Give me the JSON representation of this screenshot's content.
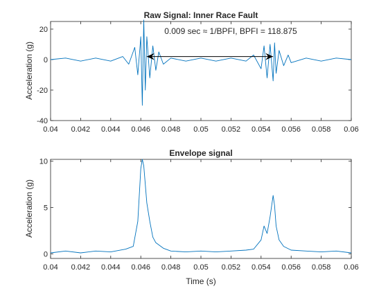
{
  "chart_data": [
    {
      "type": "line",
      "title": "Raw Signal: Inner Race Fault",
      "xlabel": "",
      "ylabel": "Acceleration (g)",
      "xlim": [
        0.04,
        0.06
      ],
      "ylim": [
        -40,
        25
      ],
      "xticks": [
        0.04,
        0.042,
        0.044,
        0.046,
        0.048,
        0.05,
        0.052,
        0.054,
        0.056,
        0.058,
        0.06
      ],
      "xtick_labels": [
        "0.04",
        "0.042",
        "0.044",
        "0.046",
        "0.048",
        "0.05",
        "0.052",
        "0.054",
        "0.056",
        "0.058",
        "0.06"
      ],
      "yticks": [
        -40,
        -20,
        0,
        20
      ],
      "ytick_labels": [
        "-40",
        "-20",
        "0",
        "20"
      ],
      "color": "#0072BD",
      "annotation": {
        "text": "0.009 sec ≈ 1/BPFI, BPFI = 118.875",
        "arrow_from": [
          0.0464,
          2
        ],
        "arrow_to": [
          0.0548,
          2
        ]
      },
      "series": [
        {
          "x": [
            0.04,
            0.041,
            0.042,
            0.043,
            0.044,
            0.0448,
            0.0452,
            0.0456,
            0.0458,
            0.046,
            0.0461,
            0.0462,
            0.0463,
            0.0464,
            0.0466,
            0.0468,
            0.047,
            0.0472,
            0.0475,
            0.048,
            0.049,
            0.05,
            0.051,
            0.052,
            0.053,
            0.0535,
            0.054,
            0.0542,
            0.0544,
            0.0546,
            0.0548,
            0.0549,
            0.055,
            0.0552,
            0.0555,
            0.0558,
            0.056,
            0.057,
            0.058,
            0.059,
            0.06
          ],
          "y": [
            0,
            1,
            -1,
            1,
            -1,
            2,
            -3,
            8,
            -10,
            15,
            -30,
            26,
            -20,
            15,
            -12,
            9,
            -7,
            5,
            -3,
            1,
            -1,
            1,
            -1,
            1,
            -1,
            3,
            -6,
            9,
            -12,
            10,
            -14,
            11,
            -9,
            6,
            -4,
            3,
            -2,
            1,
            -1,
            1,
            0
          ]
        }
      ]
    },
    {
      "type": "line",
      "title": "Envelope signal",
      "xlabel": "Time (s)",
      "ylabel": "Acceleration (g)",
      "xlim": [
        0.04,
        0.06
      ],
      "ylim": [
        -0.5,
        10.2
      ],
      "xticks": [
        0.04,
        0.042,
        0.044,
        0.046,
        0.048,
        0.05,
        0.052,
        0.054,
        0.056,
        0.058,
        0.06
      ],
      "xtick_labels": [
        "0.04",
        "0.042",
        "0.044",
        "0.046",
        "0.048",
        "0.05",
        "0.052",
        "0.054",
        "0.056",
        "0.058",
        "0.06"
      ],
      "yticks": [
        0,
        5,
        10
      ],
      "ytick_labels": [
        "0",
        "5",
        "10"
      ],
      "color": "#0072BD",
      "series": [
        {
          "x": [
            0.04,
            0.041,
            0.042,
            0.043,
            0.044,
            0.045,
            0.0455,
            0.0458,
            0.046,
            0.0461,
            0.0462,
            0.0464,
            0.0466,
            0.0468,
            0.047,
            0.0475,
            0.048,
            0.049,
            0.05,
            0.051,
            0.052,
            0.053,
            0.0535,
            0.054,
            0.0542,
            0.0544,
            0.0546,
            0.0548,
            0.0549,
            0.055,
            0.0552,
            0.0555,
            0.056,
            0.057,
            0.058,
            0.059,
            0.06
          ],
          "y": [
            0.1,
            0.3,
            0.1,
            0.3,
            0.2,
            0.5,
            0.8,
            3.5,
            9.2,
            10.2,
            9.5,
            5.5,
            3.5,
            1.8,
            1.2,
            0.6,
            0.3,
            0.2,
            0.3,
            0.2,
            0.3,
            0.4,
            0.5,
            1.5,
            3.0,
            2.2,
            4.0,
            6.3,
            5.2,
            3.0,
            1.5,
            0.8,
            0.4,
            0.3,
            0.2,
            0.3,
            0.1
          ]
        }
      ]
    }
  ]
}
